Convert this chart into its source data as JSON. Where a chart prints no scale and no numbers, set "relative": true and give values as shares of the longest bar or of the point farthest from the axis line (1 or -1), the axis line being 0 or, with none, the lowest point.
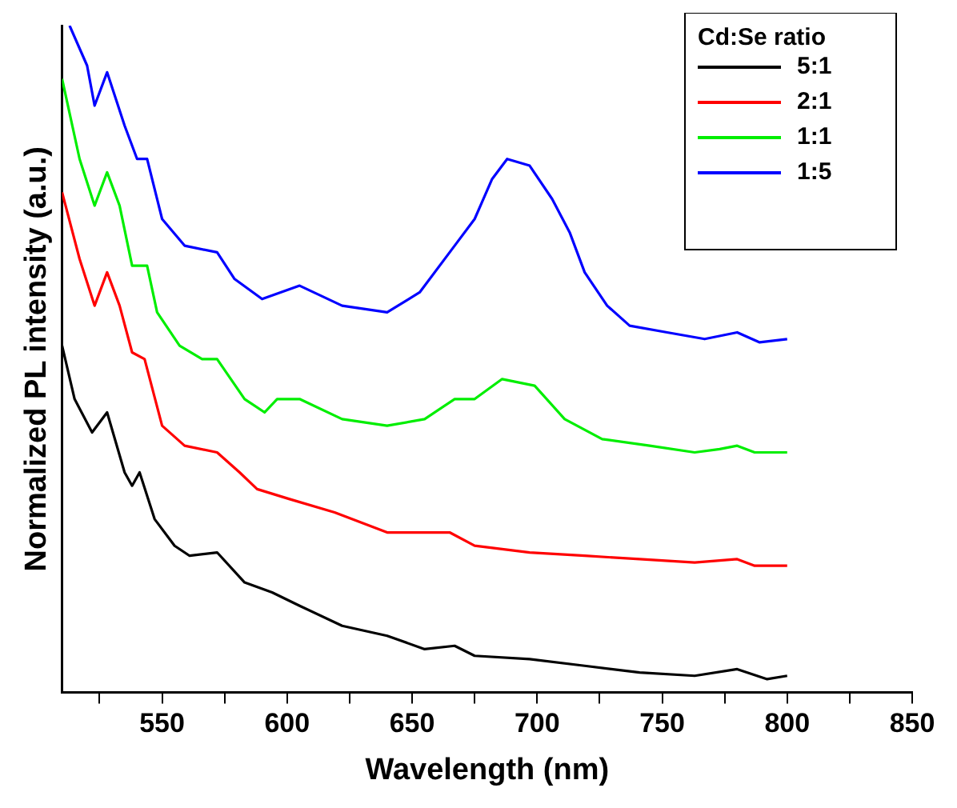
{
  "chart_data": {
    "type": "line",
    "xlabel": "Wavelength (nm)",
    "ylabel": "Normalized PL intensity (a.u.)",
    "legend_title": "Cd:Se ratio",
    "relative": true,
    "legend": "top right",
    "grid": false,
    "marker": "none",
    "line_style": "solid",
    "xlim": [
      510,
      850
    ],
    "xticks": [
      {
        "value": 525,
        "label": null
      },
      550,
      {
        "value": 575,
        "label": null
      },
      600,
      {
        "value": 625,
        "label": null
      },
      650,
      {
        "value": 675,
        "label": null
      },
      700,
      {
        "value": 725,
        "label": null
      },
      750,
      {
        "value": 775,
        "label": null
      },
      800,
      {
        "value": 825,
        "label": null
      },
      850
    ],
    "series": [
      {
        "name": "5:1",
        "color": "#000000",
        "x": [
          510,
          515,
          522,
          528,
          535,
          538,
          541,
          547,
          555,
          561,
          572,
          583,
          594,
          605,
          622,
          640,
          655,
          667,
          675,
          697,
          719,
          741,
          763,
          780,
          792,
          800
        ],
        "values": [
          0.52,
          0.44,
          0.39,
          0.42,
          0.33,
          0.31,
          0.33,
          0.26,
          0.22,
          0.205,
          0.21,
          0.165,
          0.15,
          0.13,
          0.1,
          0.085,
          0.065,
          0.07,
          0.055,
          0.05,
          0.04,
          0.03,
          0.025,
          0.035,
          0.02,
          0.025
        ]
      },
      {
        "name": "2:1",
        "color": "#ff0000",
        "x": [
          510,
          517,
          523,
          528,
          533,
          538,
          543,
          550,
          559,
          572,
          581,
          588,
          601,
          619,
          640,
          653,
          665,
          675,
          697,
          719,
          741,
          763,
          780,
          787,
          800
        ],
        "values": [
          0.75,
          0.65,
          0.58,
          0.63,
          0.58,
          0.51,
          0.5,
          0.4,
          0.37,
          0.36,
          0.33,
          0.305,
          0.29,
          0.27,
          0.24,
          0.24,
          0.24,
          0.22,
          0.21,
          0.205,
          0.2,
          0.195,
          0.2,
          0.19,
          0.19
        ]
      },
      {
        "name": "1:1",
        "color": "#00ee00",
        "x": [
          510,
          517,
          523,
          528,
          533,
          538,
          544,
          548,
          557,
          566,
          572,
          583,
          591,
          596,
          605,
          622,
          640,
          655,
          667,
          675,
          686,
          699,
          711,
          726,
          745,
          763,
          773,
          780,
          787,
          800
        ],
        "values": [
          0.92,
          0.8,
          0.73,
          0.78,
          0.73,
          0.64,
          0.64,
          0.57,
          0.52,
          0.5,
          0.5,
          0.44,
          0.42,
          0.44,
          0.44,
          0.41,
          0.4,
          0.41,
          0.44,
          0.44,
          0.47,
          0.46,
          0.41,
          0.38,
          0.37,
          0.36,
          0.365,
          0.37,
          0.36,
          0.36
        ]
      },
      {
        "name": "1:5",
        "color": "#0000ff",
        "x": [
          513,
          520,
          523,
          528,
          535,
          540,
          544,
          550,
          559,
          572,
          579,
          590,
          605,
          622,
          640,
          653,
          667,
          675,
          682,
          688,
          697,
          706,
          713,
          719,
          728,
          737,
          752,
          767,
          780,
          789,
          800
        ],
        "values": [
          1.0,
          0.94,
          0.88,
          0.93,
          0.85,
          0.8,
          0.8,
          0.71,
          0.67,
          0.66,
          0.62,
          0.59,
          0.61,
          0.58,
          0.57,
          0.6,
          0.67,
          0.71,
          0.77,
          0.8,
          0.79,
          0.74,
          0.69,
          0.63,
          0.58,
          0.55,
          0.54,
          0.53,
          0.54,
          0.525,
          0.53
        ]
      }
    ]
  }
}
